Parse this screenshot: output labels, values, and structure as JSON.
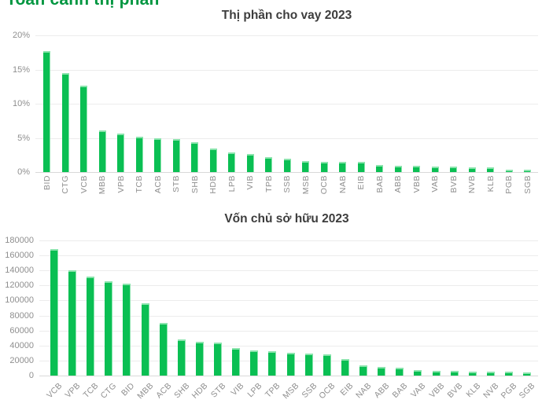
{
  "page_heading": {
    "text": "Toàn cảnh thị phần"
  },
  "colors": {
    "bar": "#0abf53",
    "bar_highlight": "#8ae4ad",
    "heading_green": "#009640",
    "title_text": "#3d3d3d",
    "tick_text": "#8f8f8f",
    "gridline": "#ececec",
    "axis_line": "#d9d9d9"
  },
  "chart_data": [
    {
      "type": "bar",
      "title": "Thị phần cho vay 2023",
      "categories": [
        "BID",
        "CTG",
        "VCB",
        "MBB",
        "VPB",
        "TCB",
        "ACB",
        "STB",
        "SHB",
        "HDB",
        "LPB",
        "VIB",
        "TPB",
        "SSB",
        "MSB",
        "OCB",
        "NAB",
        "EIB",
        "BAB",
        "ABB",
        "VBB",
        "VAB",
        "BVB",
        "NVB",
        "KLB",
        "PGB",
        "SGB"
      ],
      "values": [
        17.7,
        14.5,
        12.6,
        6.1,
        5.6,
        5.2,
        4.9,
        4.8,
        4.4,
        3.4,
        2.85,
        2.65,
        2.15,
        1.9,
        1.6,
        1.5,
        1.45,
        1.45,
        1.05,
        0.95,
        0.9,
        0.8,
        0.75,
        0.7,
        0.65,
        0.4,
        0.3
      ],
      "unit": "%",
      "ylim": [
        0,
        20
      ],
      "y_ticks": [
        "20%",
        "15%",
        "10%",
        "5%",
        "0%"
      ],
      "grid": true,
      "legend": "none",
      "x_label_style": "vertical"
    },
    {
      "type": "bar",
      "title": "Vốn chủ sở hữu 2023",
      "categories": [
        "VCB",
        "VPB",
        "TCB",
        "CTG",
        "BID",
        "MBB",
        "ACB",
        "SHB",
        "HDB",
        "STB",
        "VIB",
        "LPB",
        "TPB",
        "MSB",
        "SSB",
        "OCB",
        "EIB",
        "NAB",
        "ABB",
        "BAB",
        "VAB",
        "VBB",
        "BVB",
        "KLB",
        "NVB",
        "PGB",
        "SGB"
      ],
      "values": [
        168000,
        140000,
        132000,
        126000,
        122000,
        96000,
        70000,
        48000,
        45500,
        44000,
        37000,
        33000,
        32000,
        30000,
        29000,
        28500,
        21500,
        14000,
        12000,
        10000,
        7000,
        6200,
        5800,
        5600,
        5200,
        4800,
        4000
      ],
      "unit": "",
      "ylim": [
        0,
        180000
      ],
      "y_ticks": [
        "180000",
        "160000",
        "140000",
        "120000",
        "100000",
        "80000",
        "60000",
        "40000",
        "20000",
        "0"
      ],
      "grid": true,
      "legend": "none",
      "x_label_style": "diagonal"
    }
  ]
}
